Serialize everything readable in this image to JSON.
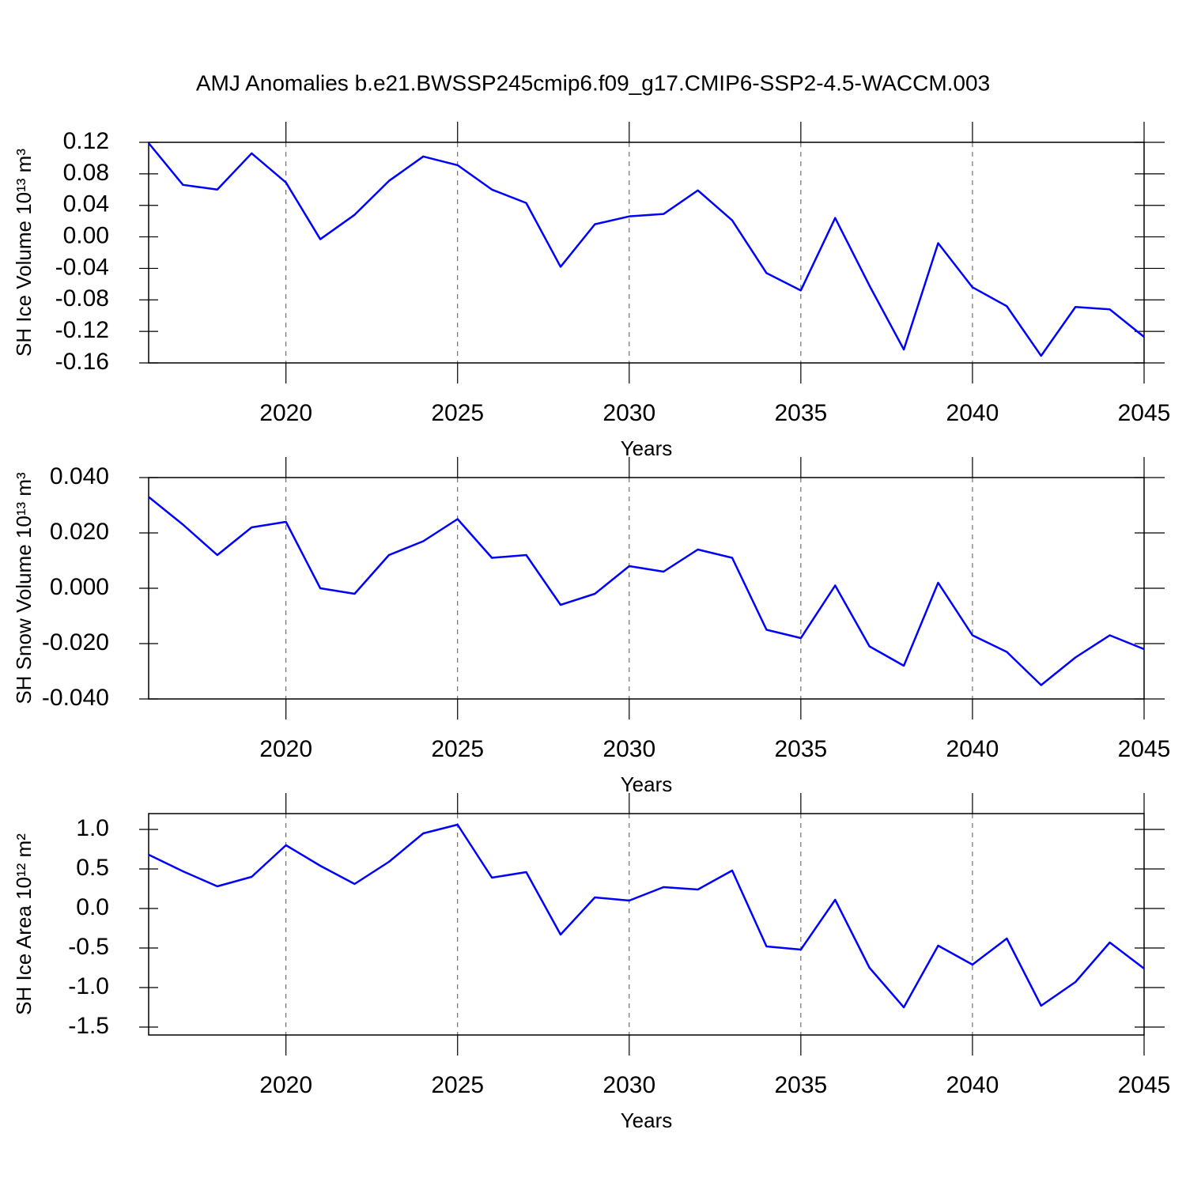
{
  "chart_data": [
    {
      "type": "line",
      "title": "AMJ Anomalies b.e21.BWSSP245cmip6.f09_g17.CMIP6-SSP2-4.5-WACCM.003",
      "ylabel": "SH Ice Volume 10¹³ m³",
      "xlabel": "Years",
      "x": [
        2016,
        2017,
        2018,
        2019,
        2020,
        2021,
        2022,
        2023,
        2024,
        2025,
        2026,
        2027,
        2028,
        2029,
        2030,
        2031,
        2032,
        2033,
        2034,
        2035,
        2036,
        2037,
        2038,
        2039,
        2040,
        2041,
        2042,
        2043,
        2044,
        2045
      ],
      "series": [
        {
          "color": "#0000ff",
          "values": [
            0.119,
            0.066,
            0.06,
            0.106,
            0.069,
            -0.003,
            0.028,
            0.071,
            0.102,
            0.091,
            0.06,
            0.043,
            -0.038,
            0.016,
            0.026,
            0.029,
            0.059,
            0.021,
            -0.046,
            -0.068,
            0.024,
            -0.062,
            -0.143,
            -0.008,
            -0.064,
            -0.088,
            -0.151,
            -0.089,
            -0.092,
            -0.127
          ]
        }
      ],
      "xlim": [
        2016,
        2045
      ],
      "xticks": [
        2020,
        2025,
        2030,
        2035,
        2040,
        2045
      ],
      "ylim": [
        -0.16,
        0.12
      ],
      "yticks": [
        -0.16,
        -0.12,
        -0.08,
        -0.04,
        {
          "value": 0,
          "label": "0.00"
        },
        0.04,
        0.08,
        0.12
      ],
      "xgrid": true
    },
    {
      "type": "line",
      "ylabel": "SH Snow Volume 10¹³ m³",
      "xlabel": "Years",
      "x": [
        2016,
        2017,
        2018,
        2019,
        2020,
        2021,
        2022,
        2023,
        2024,
        2025,
        2026,
        2027,
        2028,
        2029,
        2030,
        2031,
        2032,
        2033,
        2034,
        2035,
        2036,
        2037,
        2038,
        2039,
        2040,
        2041,
        2042,
        2043,
        2044,
        2045
      ],
      "series": [
        {
          "color": "#0000ff",
          "values": [
            0.033,
            0.023,
            0.012,
            0.022,
            0.024,
            0.0,
            -0.002,
            0.012,
            0.017,
            0.025,
            0.011,
            0.012,
            -0.006,
            -0.002,
            0.008,
            0.006,
            0.014,
            0.011,
            -0.015,
            -0.018,
            0.001,
            -0.021,
            -0.028,
            0.002,
            -0.017,
            -0.023,
            -0.035,
            -0.025,
            -0.017,
            -0.022
          ]
        }
      ],
      "xlim": [
        2016,
        2045
      ],
      "xticks": [
        2020,
        2025,
        2030,
        2035,
        2040,
        2045
      ],
      "ylim": [
        -0.04,
        0.04
      ],
      "yticks": [
        {
          "value": -0.04,
          "label": "-0.040"
        },
        {
          "value": -0.02,
          "label": "-0.020"
        },
        {
          "value": 0,
          "label": "0.000"
        },
        {
          "value": 0.02,
          "label": "0.020"
        },
        {
          "value": 0.04,
          "label": "0.040"
        }
      ],
      "xgrid": true
    },
    {
      "type": "line",
      "ylabel": "SH Ice Area 10¹² m²",
      "xlabel": "Years",
      "x": [
        2016,
        2017,
        2018,
        2019,
        2020,
        2021,
        2022,
        2023,
        2024,
        2025,
        2026,
        2027,
        2028,
        2029,
        2030,
        2031,
        2032,
        2033,
        2034,
        2035,
        2036,
        2037,
        2038,
        2039,
        2040,
        2041,
        2042,
        2043,
        2044,
        2045
      ],
      "series": [
        {
          "color": "#0000ff",
          "values": [
            0.68,
            0.47,
            0.28,
            0.4,
            0.8,
            0.54,
            0.31,
            0.59,
            0.95,
            1.06,
            0.39,
            0.46,
            -0.33,
            0.14,
            0.1,
            0.27,
            0.24,
            0.48,
            -0.48,
            -0.52,
            0.11,
            -0.75,
            -1.25,
            -0.47,
            -0.71,
            -0.38,
            -1.23,
            -0.93,
            -0.43,
            -0.76
          ]
        }
      ],
      "xlim": [
        2016,
        2045
      ],
      "xticks": [
        2020,
        2025,
        2030,
        2035,
        2040,
        2045
      ],
      "ylim": [
        -1.6,
        1.2
      ],
      "yticks": [
        -1.5,
        {
          "value": -1,
          "label": "-1.0"
        },
        -0.5,
        {
          "value": 0,
          "label": "0.0"
        },
        0.5,
        {
          "value": 1,
          "label": "1.0"
        }
      ],
      "xgrid": true
    }
  ]
}
